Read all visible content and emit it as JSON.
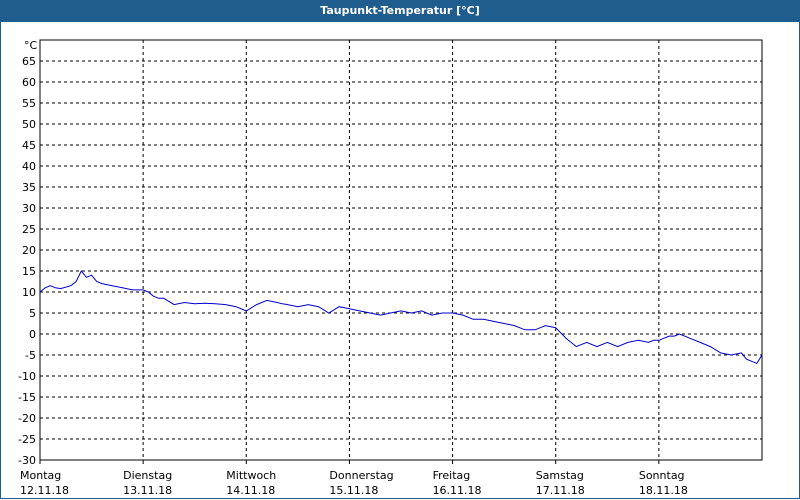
{
  "header": {
    "title": "Taupunkt-Temperatur [°C]"
  },
  "chart_data": {
    "type": "line",
    "unit_label": "°C",
    "ylim": [
      -30,
      70
    ],
    "yticks": [
      65,
      60,
      55,
      50,
      45,
      40,
      35,
      30,
      25,
      20,
      15,
      10,
      5,
      0,
      -5,
      -10,
      -15,
      -20,
      -25,
      -30
    ],
    "xlim": [
      0,
      7
    ],
    "grid": true,
    "days": [
      {
        "day": "Montag",
        "date": "12.11.18"
      },
      {
        "day": "Dienstag",
        "date": "13.11.18"
      },
      {
        "day": "Mittwoch",
        "date": "14.11.18"
      },
      {
        "day": "Donnerstag",
        "date": "15.11.18"
      },
      {
        "day": "Freitag",
        "date": "16.11.18"
      },
      {
        "day": "Samstag",
        "date": "17.11.18"
      },
      {
        "day": "Sonntag",
        "date": "18.11.18"
      }
    ],
    "series": [
      {
        "color": "#0000cc",
        "x": [
          0,
          0.05,
          0.1,
          0.15,
          0.2,
          0.3,
          0.35,
          0.4,
          0.45,
          0.5,
          0.55,
          0.6,
          0.7,
          0.8,
          0.9,
          1.0,
          1.05,
          1.1,
          1.15,
          1.2,
          1.3,
          1.4,
          1.5,
          1.6,
          1.7,
          1.8,
          1.9,
          2.0,
          2.1,
          2.2,
          2.3,
          2.35,
          2.4,
          2.5,
          2.6,
          2.7,
          2.8,
          2.9,
          3.0,
          3.1,
          3.2,
          3.3,
          3.4,
          3.5,
          3.6,
          3.7,
          3.8,
          3.9,
          4.0,
          4.1,
          4.2,
          4.3,
          4.4,
          4.5,
          4.6,
          4.7,
          4.8,
          4.9,
          5.0,
          5.1,
          5.2,
          5.3,
          5.4,
          5.5,
          5.6,
          5.7,
          5.8,
          5.9,
          5.95,
          6.0,
          6.05,
          6.1,
          6.15,
          6.2,
          6.25,
          6.3,
          6.4,
          6.5,
          6.6,
          6.7,
          6.8,
          6.85,
          6.9,
          6.95,
          7.0
        ],
        "y": [
          10,
          11,
          11.5,
          11,
          10.8,
          11.5,
          12.5,
          15,
          13.5,
          14,
          12.5,
          12,
          11.5,
          11,
          10.5,
          10.5,
          10,
          9,
          8.5,
          8.5,
          7,
          7.5,
          7.2,
          7.3,
          7.2,
          7,
          6.5,
          5.5,
          7,
          8,
          7.5,
          7.2,
          7,
          6.5,
          7,
          6.5,
          5,
          6.5,
          6,
          5.5,
          5,
          4.5,
          5,
          5.5,
          5,
          5.5,
          4.5,
          5,
          5,
          4.5,
          3.5,
          3.5,
          3,
          2.5,
          2,
          1,
          1,
          2,
          1.5,
          -1,
          -3,
          -2,
          -3,
          -2,
          -3,
          -2,
          -1.5,
          -2,
          -1.5,
          -1.5,
          -1,
          -0.5,
          -0.5,
          0,
          -0.5,
          -1,
          -2,
          -3,
          -4.5,
          -5,
          -4.5,
          -6,
          -6.5,
          -7,
          -5
        ]
      }
    ]
  }
}
